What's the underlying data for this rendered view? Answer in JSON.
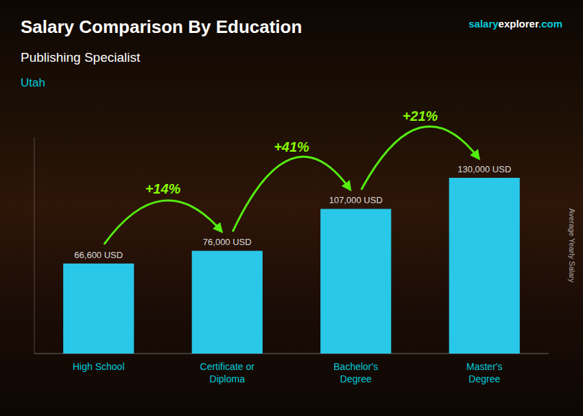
{
  "chart_data": {
    "type": "bar",
    "title": "Salary Comparison By Education",
    "subtitle": "Publishing Specialist",
    "location": "Utah",
    "source": "salaryexplorer.com",
    "y_label": "Average Yearly Salary",
    "categories": [
      "High School",
      "Certificate or\nDiploma",
      "Bachelor's\nDegree",
      "Master's\nDegree"
    ],
    "values": [
      66600,
      76000,
      107000,
      130000
    ],
    "value_labels": [
      "66,600 USD",
      "76,000 USD",
      "107,000 USD",
      "130,000 USD"
    ],
    "annotations": [
      "+14%",
      "+41%",
      "+21%"
    ],
    "color": "#29c8e8",
    "ylim": [
      0,
      160000
    ],
    "data_labels": true,
    "tick_labels": "x",
    "grid": false
  }
}
